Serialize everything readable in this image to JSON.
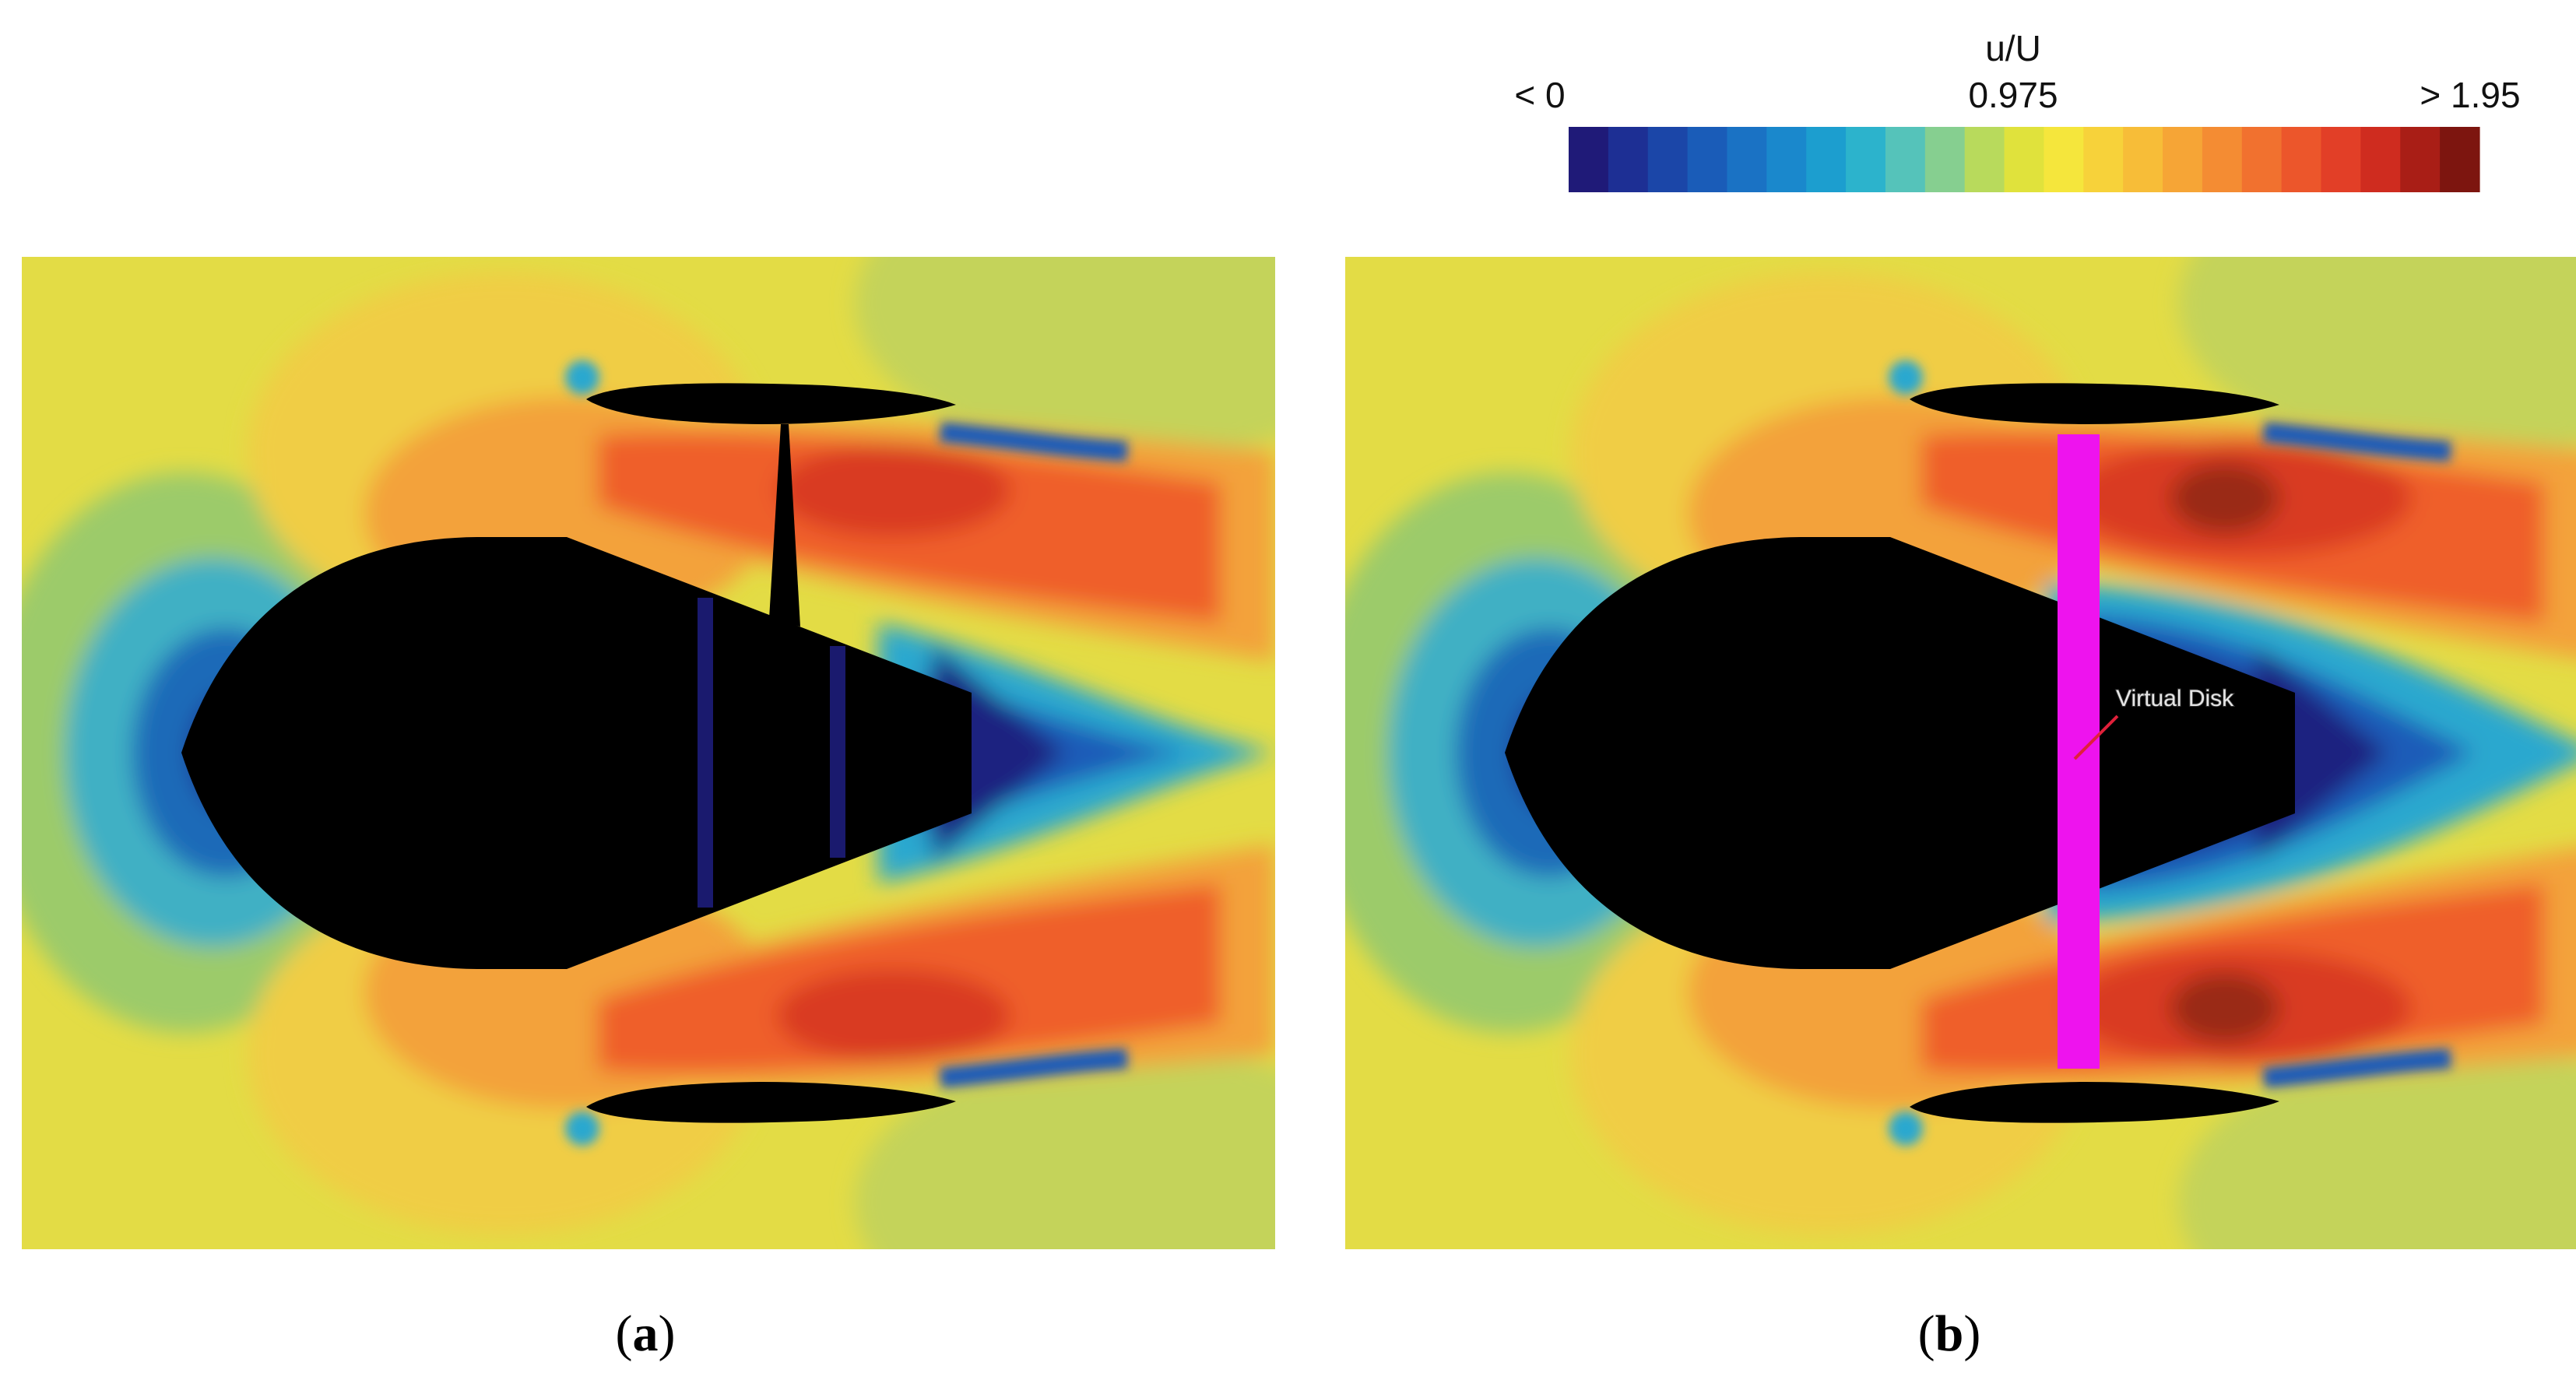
{
  "colorbar": {
    "title": "u/U",
    "tick_min": "< 0",
    "tick_mid": "0.975",
    "tick_max": "> 1.95",
    "colors": [
      "#1f1a78",
      "#1d2f94",
      "#1b46a8",
      "#1a5cb8",
      "#1a72c4",
      "#1a88cc",
      "#1c9ecf",
      "#2cb3cc",
      "#55c3ba",
      "#86cf90",
      "#b8da5c",
      "#e0e23c",
      "#f5e63c",
      "#f7d23a",
      "#f7bd38",
      "#f6a536",
      "#f48c33",
      "#f1712f",
      "#ec562b",
      "#e23f27",
      "#cf2c1f",
      "#a91e16",
      "#7d150f"
    ]
  },
  "panels": [
    {
      "caption_open": "(",
      "caption_letter": "a",
      "caption_close": ")",
      "variant": "blades"
    },
    {
      "caption_open": "(",
      "caption_letter": "b",
      "caption_close": ")",
      "variant": "virtual-disk",
      "annotation": "Virtual Disk"
    }
  ],
  "field_colors": {
    "background": "#e3dc45",
    "far_wake": "#c4d35a",
    "upstream_far": "#9ccb6a",
    "upstream_mid": "#3fb0c4",
    "upstream_near": "#1a6ab8",
    "upstream_core": "#1d2f94",
    "bulge_light": "#f0cd45",
    "bulge_mid": "#f3a23a",
    "accel": "#ef5f2c",
    "accel_core": "#d93b22",
    "peak": "#9a2a14",
    "wake_dark": "#1d2080",
    "wake_mid": "#1a5cb8",
    "wake_light": "#2aa8cf",
    "body": "#000000",
    "blade": "#1a1a6e",
    "disk": "#ee13ee",
    "annotation_line": "#e0203a",
    "annotation_text": "#e6e6e6"
  }
}
